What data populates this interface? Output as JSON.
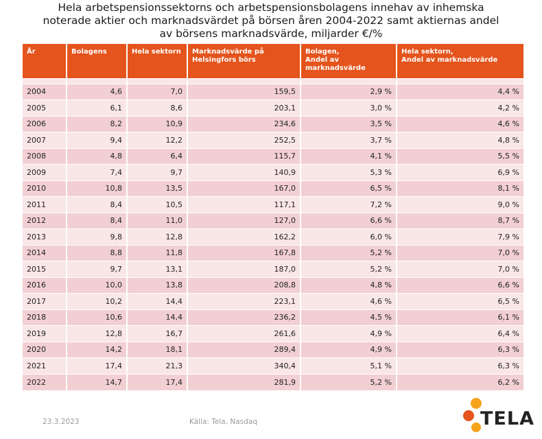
{
  "title_lines": [
    "Hela arbetspensionssektorns och arbetspensionsbolagens innehav av inhemska",
    "noterade aktier och marknadsvärdet på börsen åren 2004-2022 samt aktiernas andel",
    "av börsens marknadsvärde, miljarder €/%"
  ],
  "table": {
    "headers": [
      [
        "År"
      ],
      [
        "Bolagens"
      ],
      [
        "Hela sektorn"
      ],
      [
        "Marknadsvärde på",
        "Helsingfors börs"
      ],
      [
        "Bolagen,",
        "Andel av",
        "marknadsvärde"
      ],
      [
        "Hela sektorn,",
        "Andel av marknadsvärde"
      ]
    ],
    "rows": [
      [
        "2004",
        "4,6",
        "7,0",
        "159,5",
        "2,9 %",
        "4,4 %"
      ],
      [
        "2005",
        "6,1",
        "8,6",
        "203,1",
        "3,0 %",
        "4,2 %"
      ],
      [
        "2006",
        "8,2",
        "10,9",
        "234,6",
        "3,5 %",
        "4,6 %"
      ],
      [
        "2007",
        "9,4",
        "12,2",
        "252,5",
        "3,7 %",
        "4,8 %"
      ],
      [
        "2008",
        "4,8",
        "6,4",
        "115,7",
        "4,1 %",
        "5,5 %"
      ],
      [
        "2009",
        "7,4",
        "9,7",
        "140,9",
        "5,3 %",
        "6,9 %"
      ],
      [
        "2010",
        "10,8",
        "13,5",
        "167,0",
        "6,5 %",
        "8,1 %"
      ],
      [
        "2011",
        "8,4",
        "10,5",
        "117,1",
        "7,2 %",
        "9,0 %"
      ],
      [
        "2012",
        "8,4",
        "11,0",
        "127,0",
        "6,6 %",
        "8,7 %"
      ],
      [
        "2013",
        "9,8",
        "12,8",
        "162,2",
        "6,0 %",
        "7,9 %"
      ],
      [
        "2014",
        "8,8",
        "11,8",
        "167,8",
        "5,2 %",
        "7,0 %"
      ],
      [
        "2015",
        "9,7",
        "13,1",
        "187,0",
        "5,2 %",
        "7,0 %"
      ],
      [
        "2016",
        "10,0",
        "13,8",
        "208,8",
        "4,8 %",
        "6,6 %"
      ],
      [
        "2017",
        "10,2",
        "14,4",
        "223,1",
        "4,6 %",
        "6,5 %"
      ],
      [
        "2018",
        "10,6",
        "14,4",
        "236,2",
        "4,5 %",
        "6,1 %"
      ],
      [
        "2019",
        "12,8",
        "16,7",
        "261,6",
        "4,9 %",
        "6,4 %"
      ],
      [
        "2020",
        "14,2",
        "18,1",
        "289,4",
        "4,9 %",
        "6,3 %"
      ],
      [
        "2021",
        "17,4",
        "21,3",
        "340,4",
        "5,1 %",
        "6,3 %"
      ],
      [
        "2022",
        "14,7",
        "17,4",
        "281,9",
        "5,2 %",
        "6,2 %"
      ]
    ]
  },
  "footer": {
    "date": "23.3.2023",
    "source": "Källa: Tela, Nasdaq"
  },
  "logo": {
    "text": "TELA",
    "icon": "tela-dots-logo-icon",
    "colors": [
      "#f7a21b",
      "#e4541c",
      "#f7a21b"
    ]
  },
  "colors": {
    "header": "#e4541c",
    "row_odd": "#f2cfd2",
    "row_even": "#f9e6e7"
  }
}
